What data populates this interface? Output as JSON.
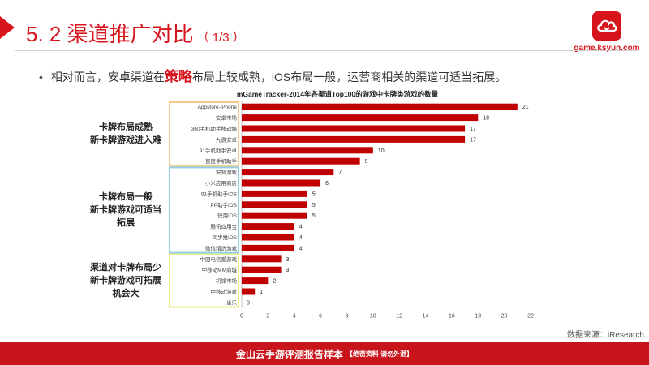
{
  "header": {
    "title": "5. 2 渠道推广对比",
    "part": "（ 1/3 ）",
    "logo_site": "game.ksyun.com"
  },
  "bullet": {
    "dot": "•",
    "before": "相对而言，安卓渠道在",
    "emphasis": "策略",
    "after": "布局上较成熟，iOS布局一般，运营商相关的渠道可适当拓展。"
  },
  "groups": [
    {
      "lines": [
        "卡牌布局成熟",
        "新卡牌游戏进入难"
      ],
      "color": "#f5c98a"
    },
    {
      "lines": [
        "卡牌布局一般",
        "新卡牌游戏可适当",
        "拓展"
      ],
      "color": "#8fd0e6"
    },
    {
      "lines": [
        "渠道对卡牌布局少",
        "新卡牌游戏可拓展",
        "机会大"
      ],
      "color": "#ecec80"
    }
  ],
  "chart_data": {
    "type": "bar",
    "orientation": "horizontal",
    "title": "mGameTracker-2014年各渠道Top100的游戏中卡牌类游戏的数量",
    "categories": [
      "Appstore-iPhone",
      "安卓市场",
      "360手机助手移动端",
      "九游安卓",
      "91手机助手安卓",
      "百度手机助手",
      "安智游戏",
      "小米应用商店",
      "91手机助手iOS",
      "PP助手iOS",
      "快用iOS",
      "腾讯应用宝",
      "同步推iOS",
      "微信精选游戏",
      "中国电信爱游戏",
      "中移动MM商城",
      "机锋市场",
      "中移动游戏",
      "当乐"
    ],
    "values": [
      21,
      18,
      17,
      17,
      10,
      9,
      7,
      6,
      5,
      5,
      5,
      4,
      4,
      4,
      3,
      3,
      2,
      1,
      0
    ],
    "xlim": [
      0,
      22
    ],
    "xticks": [
      "0",
      "2",
      "4",
      "6",
      "8",
      "10",
      "12",
      "14",
      "16",
      "18",
      "20",
      "22"
    ],
    "bar_color": "#c00000",
    "grid": false
  },
  "footer": {
    "text": "金山云手游评测报告样本",
    "note": "【绝密资料 请勿外泄】"
  },
  "source": "数据来源：iResearch"
}
